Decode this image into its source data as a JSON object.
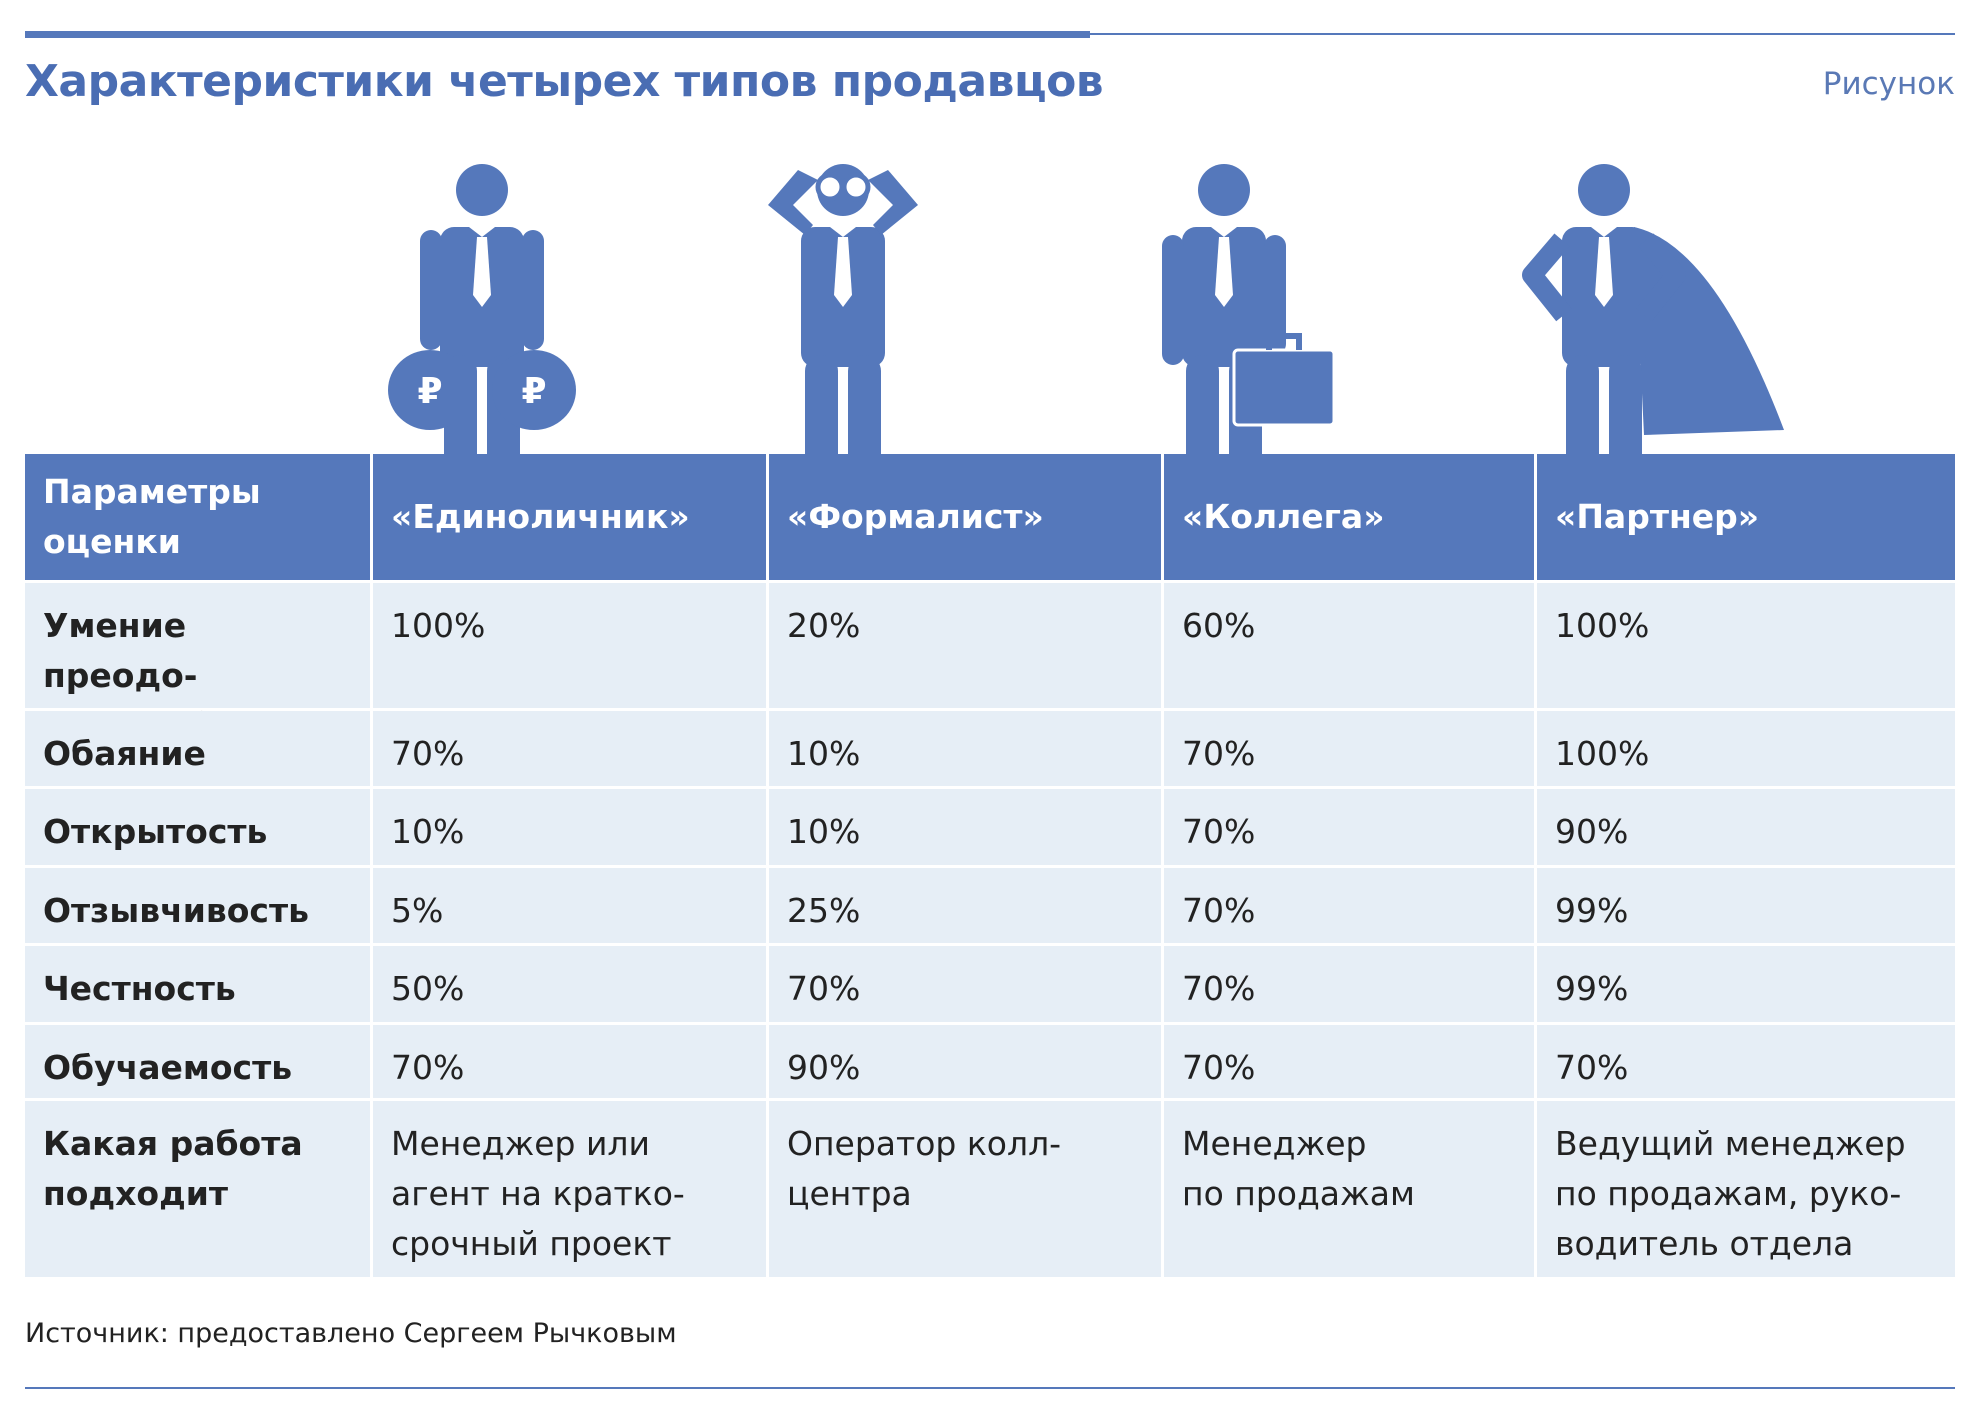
{
  "header": {
    "title": "Характеристики четырех типов продавцов",
    "label": "Рисунок"
  },
  "table": {
    "header": [
      "Параметры\nоценки",
      "«Единоличник»",
      "«Формалист»",
      "«Коллега»",
      "«Партнер»"
    ],
    "rows": [
      [
        "Умение преодо-\nлевать барьеры",
        "100%",
        "20%",
        "60%",
        "100%"
      ],
      [
        "Обаяние",
        "70%",
        "10%",
        "70%",
        "100%"
      ],
      [
        "Открытость",
        "10%",
        "10%",
        "70%",
        "90%"
      ],
      [
        "Отзывчивость",
        "5%",
        "25%",
        "70%",
        "99%"
      ],
      [
        "Честность",
        "50%",
        "70%",
        "70%",
        "99%"
      ],
      [
        "Обучаемость",
        "70%",
        "90%",
        "70%",
        "70%"
      ],
      [
        "Какая работа\nподходит",
        "Менеджер или\nагент на кратко-\nсрочный проект",
        "Оператор колл-\nцентра",
        "Менеджер\nпо продажам",
        "Ведущий менеджер\nпо продажам, руко-\nводитель отдела"
      ]
    ]
  },
  "source": "Источник: предоставлено Сергеем Рычковым"
}
